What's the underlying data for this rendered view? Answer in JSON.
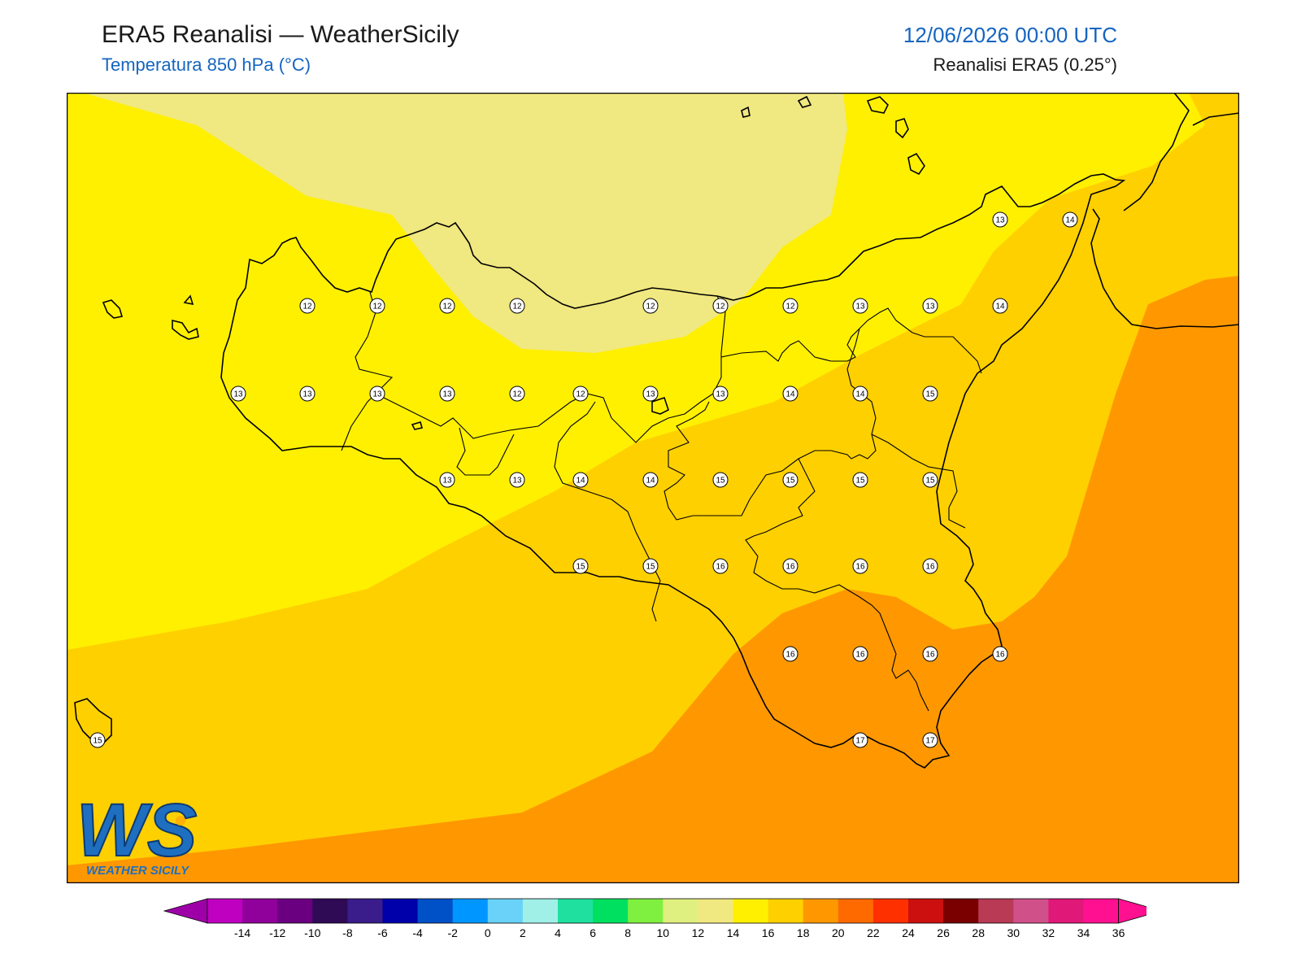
{
  "header": {
    "title": "ERA5 Reanalisi — WeatherSicily",
    "subtitle": "Temperatura 850 hPa (°C)",
    "datetime": "12/06/2026 00:00 UTC",
    "source": "Reanalisi ERA5 (0.25°)"
  },
  "logo": {
    "text": "WS",
    "caption": "WEATHER SICILY"
  },
  "colorbar": {
    "ticks": [
      "-14",
      "-12",
      "-10",
      "-8",
      "-6",
      "-4",
      "-2",
      "0",
      "2",
      "4",
      "6",
      "8",
      "10",
      "12",
      "14",
      "16",
      "18",
      "20",
      "22",
      "24",
      "26",
      "28",
      "30",
      "32",
      "34",
      "36"
    ],
    "colors": [
      "#c000c0",
      "#90009a",
      "#6a0080",
      "#2f0a55",
      "#3a1d8a",
      "#0000aa",
      "#0050c8",
      "#0096ff",
      "#6ad2f8",
      "#a0f0e8",
      "#20e0a0",
      "#00e060",
      "#80f040",
      "#e0f080",
      "#f0e880",
      "#fff000",
      "#ffd000",
      "#ff9800",
      "#ff6a00",
      "#ff3000",
      "#cc1010",
      "#7a0000",
      "#b83a55",
      "#d0508a",
      "#e01878",
      "#ff1090"
    ],
    "arrow_low": "#9e00a8",
    "arrow_high": "#ff1090"
  },
  "map_data": {
    "fill_colors": {
      "t10": "#f0e880",
      "t12": "#fff000",
      "t14": "#ffd000",
      "t16": "#ff9800",
      "coast": "#000000"
    },
    "point_values": [
      [
        12,
        12,
        12,
        12,
        12,
        12,
        12,
        13,
        13,
        14
      ],
      [
        13,
        13,
        13,
        13,
        12,
        12,
        13,
        13,
        14,
        14,
        15
      ],
      [
        13,
        13,
        14,
        14,
        15,
        15,
        15,
        15
      ],
      [
        15,
        15,
        16,
        16,
        16,
        16
      ],
      [
        16,
        16,
        16,
        16
      ],
      [
        17,
        17
      ],
      [
        13,
        14
      ],
      [
        15
      ]
    ]
  }
}
